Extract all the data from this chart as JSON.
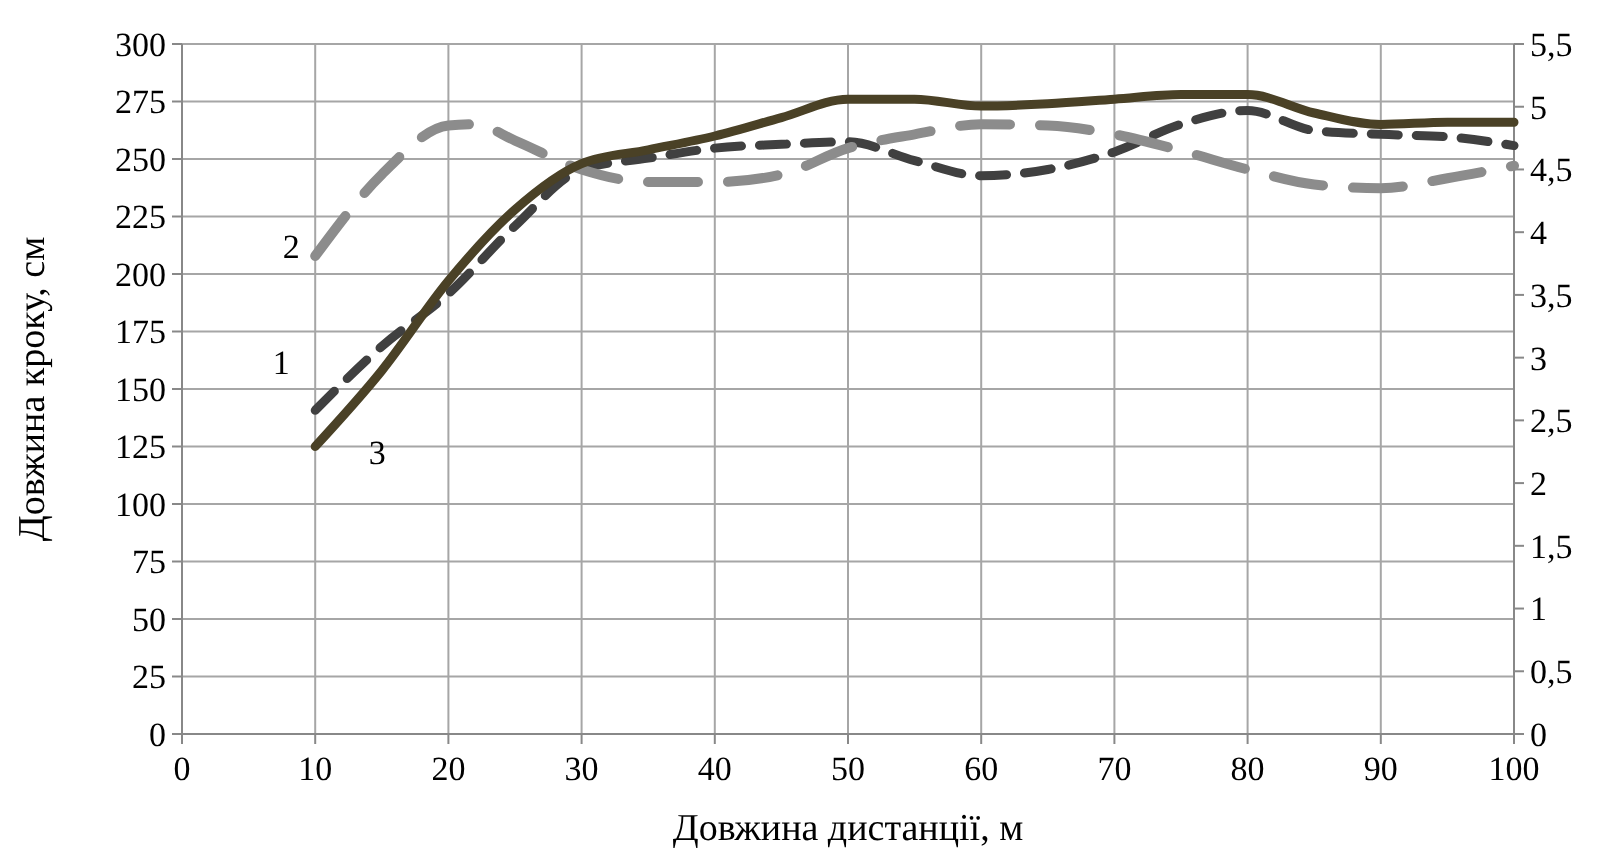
{
  "chart_data": {
    "type": "line",
    "xlabel": "Довжина дистанції,  м",
    "ylabel": "Довжина кроку, см",
    "xlim": [
      0,
      100
    ],
    "xticks": [
      0,
      10,
      20,
      30,
      40,
      50,
      60,
      70,
      80,
      90,
      100
    ],
    "ylim": [
      0,
      300
    ],
    "yticks": [
      0,
      25,
      50,
      75,
      100,
      125,
      150,
      175,
      200,
      225,
      250,
      275,
      300
    ],
    "y2lim": [
      0,
      5.5
    ],
    "y2ticks": [
      0,
      {
        "value": 0.5,
        "label": "0,5"
      },
      1,
      {
        "value": 1.5,
        "label": "1,5"
      },
      2,
      {
        "value": 2.5,
        "label": "2,5"
      },
      3,
      {
        "value": 3.5,
        "label": "3,5"
      },
      4,
      {
        "value": 4.5,
        "label": "4,5"
      },
      5,
      {
        "value": 5.5,
        "label": "5,5"
      }
    ],
    "grid": true,
    "marker": "none",
    "series": [
      {
        "name": "1",
        "color": "#404040",
        "axis": "y2",
        "line_style": "dashed",
        "x": [
          10,
          15,
          20,
          25,
          30,
          35,
          40,
          45,
          50,
          55,
          60,
          65,
          70,
          75,
          80,
          85,
          90,
          95,
          100
        ],
        "values": [
          2.58,
          3.09,
          3.51,
          4.05,
          4.5,
          4.59,
          4.67,
          4.7,
          4.72,
          4.57,
          4.45,
          4.5,
          4.64,
          4.86,
          4.97,
          4.81,
          4.78,
          4.76,
          4.69
        ]
      },
      {
        "name": "2",
        "color": "#8c8c8c",
        "axis": "y2",
        "line_style": "dashed",
        "x": [
          10,
          15,
          20,
          22,
          25,
          30,
          35,
          40,
          45,
          50,
          55,
          60,
          65,
          70,
          75,
          80,
          85,
          90,
          95,
          100
        ],
        "values": [
          3.81,
          4.46,
          4.85,
          4.86,
          4.73,
          4.5,
          4.4,
          4.4,
          4.46,
          4.67,
          4.78,
          4.86,
          4.85,
          4.78,
          4.65,
          4.5,
          4.38,
          4.35,
          4.43,
          4.53
        ]
      },
      {
        "name": "3",
        "color": "#4a4126",
        "line_style": "solid",
        "x": [
          10,
          15,
          20,
          25,
          30,
          35,
          40,
          45,
          50,
          55,
          60,
          65,
          70,
          75,
          80,
          85,
          90,
          95,
          100
        ],
        "values": [
          125,
          158,
          197,
          228,
          248,
          254,
          260,
          268,
          276,
          276,
          273,
          274,
          276,
          278,
          278,
          270,
          265,
          266,
          266
        ]
      }
    ]
  }
}
